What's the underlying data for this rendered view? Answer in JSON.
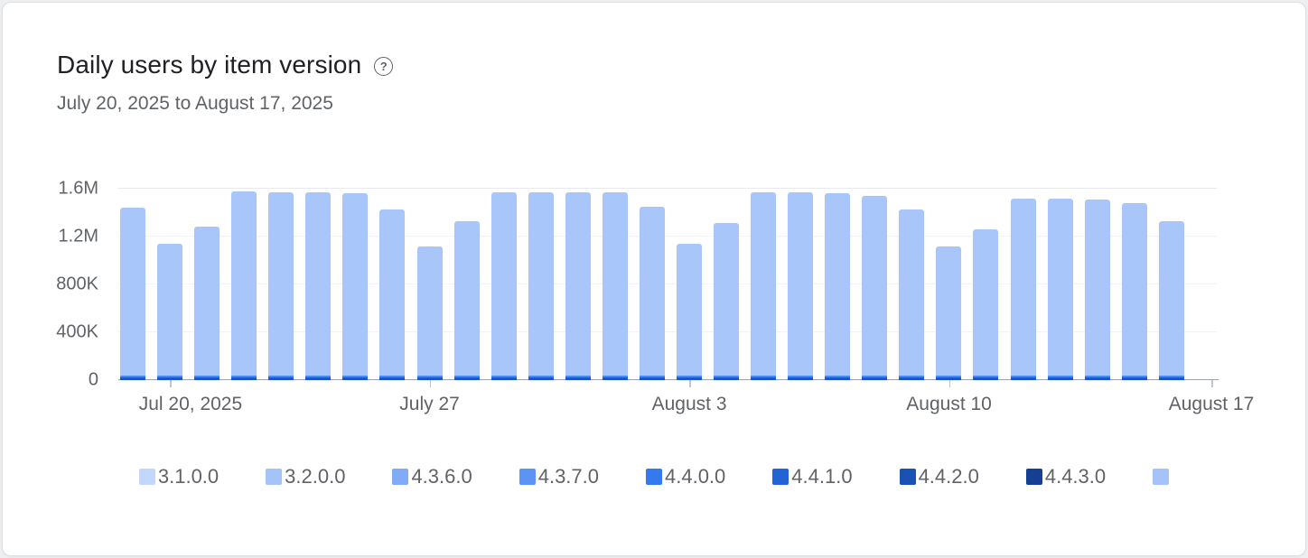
{
  "card": {
    "title": "Daily users by item version",
    "help_glyph": "?",
    "subtitle": "July 20, 2025 to August 17, 2025"
  },
  "chart_data": {
    "type": "bar",
    "stacked": true,
    "title": "Daily users by item version",
    "date_range": "July 20, 2025 to August 17, 2025",
    "ylim": [
      0,
      1600000
    ],
    "y_tick_labels": [
      "0",
      "400K",
      "800K",
      "1.2M",
      "1.6M"
    ],
    "x_tick_labels": [
      "Jul 20, 2025",
      "July 27",
      "August 3",
      "August 10",
      "August 17"
    ],
    "x_tick_day_indices": [
      1,
      8,
      15,
      22,
      null
    ],
    "grid": "horizontal",
    "legend_position": "bottom",
    "dates": [
      "Jul 20",
      "Jul 21",
      "Jul 22",
      "Jul 23",
      "Jul 24",
      "Jul 25",
      "Jul 26",
      "Jul 27",
      "Jul 28",
      "Jul 29",
      "Jul 30",
      "Jul 31",
      "Aug 1",
      "Aug 2",
      "Aug 3",
      "Aug 4",
      "Aug 5",
      "Aug 6",
      "Aug 7",
      "Aug 8",
      "Aug 9",
      "Aug 10",
      "Aug 11",
      "Aug 12",
      "Aug 13",
      "Aug 14",
      "Aug 15",
      "Aug 16",
      "Aug 17"
    ],
    "totals": [
      1440000,
      1140000,
      1280000,
      1580000,
      1570000,
      1570000,
      1560000,
      1430000,
      1120000,
      1330000,
      1570000,
      1570000,
      1570000,
      1570000,
      1450000,
      1140000,
      1310000,
      1570000,
      1570000,
      1560000,
      1540000,
      1430000,
      1120000,
      1260000,
      1520000,
      1520000,
      1510000,
      1480000,
      1330000
    ],
    "visible_segments": {
      "light": {
        "color": "#a9c6fb",
        "role": "dominant-remainder"
      },
      "mid": {
        "color": "#4a88f3",
        "value": 12000
      },
      "dark": {
        "color": "#1a57c8",
        "value": 26000
      }
    }
  },
  "legend": {
    "items": [
      {
        "label": "3.1.0.0",
        "color": "#c2d7fb"
      },
      {
        "label": "3.2.0.0",
        "color": "#a4c4f9"
      },
      {
        "label": "4.3.6.0",
        "color": "#7fabf7"
      },
      {
        "label": "4.3.7.0",
        "color": "#5b94f5"
      },
      {
        "label": "4.4.0.0",
        "color": "#3579f0"
      },
      {
        "label": "4.4.1.0",
        "color": "#2263d6"
      },
      {
        "label": "4.4.2.0",
        "color": "#1a51b4"
      },
      {
        "label": "4.4.3.0",
        "color": "#143f92"
      },
      {
        "label": "",
        "color": "#a4c4f9",
        "truncated": true
      }
    ]
  }
}
